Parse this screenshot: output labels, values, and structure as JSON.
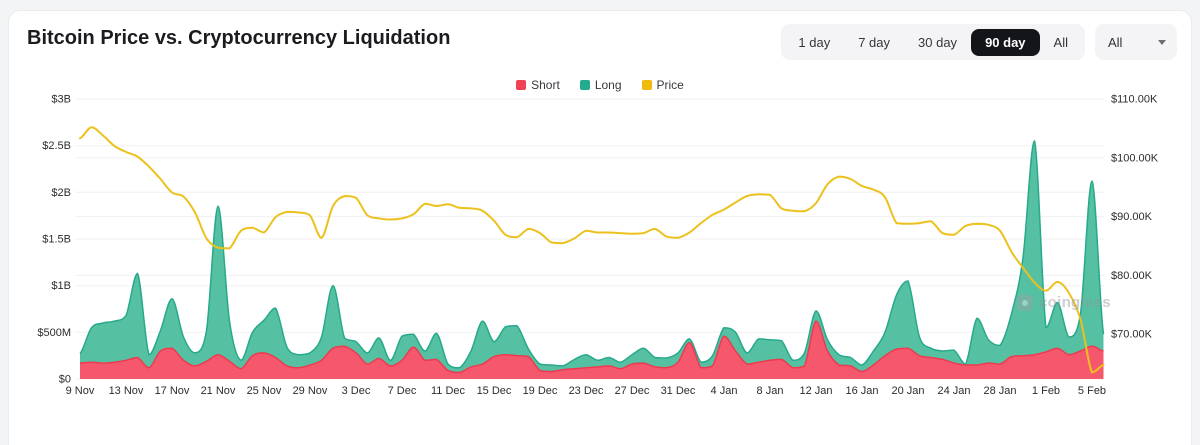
{
  "header": {
    "title": "Bitcoin Price vs. Cryptocurrency Liquidation",
    "range_buttons": [
      {
        "label": "1 day",
        "active": false
      },
      {
        "label": "7 day",
        "active": false
      },
      {
        "label": "30 day",
        "active": false
      },
      {
        "label": "90 day",
        "active": true
      },
      {
        "label": "All",
        "active": false
      }
    ],
    "dropdown": {
      "value": "All",
      "icon": "chevron-down-icon"
    }
  },
  "legend": [
    {
      "label": "Short",
      "color": "#ef4254"
    },
    {
      "label": "Long",
      "color": "#22ac8d"
    },
    {
      "label": "Price",
      "color": "#f0ba0c"
    }
  ],
  "watermark": "coinglass",
  "chart_data": {
    "type": "area",
    "title": "Bitcoin Price vs. Cryptocurrency Liquidation",
    "x_tick_labels": [
      "9 Nov",
      "13 Nov",
      "17 Nov",
      "21 Nov",
      "25 Nov",
      "29 Nov",
      "3 Dec",
      "7 Dec",
      "11 Dec",
      "15 Dec",
      "19 Dec",
      "23 Dec",
      "27 Dec",
      "31 Dec",
      "4 Jan",
      "8 Jan",
      "12 Jan",
      "16 Jan",
      "20 Jan",
      "24 Jan",
      "28 Jan",
      "1 Feb",
      "5 Feb"
    ],
    "x_tick_every_n_points": 4,
    "left_axis": {
      "ticks": [
        "$0",
        "$500M",
        "$1B",
        "$1.5B",
        "$2B",
        "$2.5B",
        "$3B"
      ],
      "unit": "USD liquidations",
      "min": 0,
      "max": 3000
    },
    "right_axis": {
      "ticks": [
        "$70.00K",
        "$80.00K",
        "$90.00K",
        "$100.00K",
        "$110.00K"
      ],
      "unit": "BTC price USD",
      "top": 110
    },
    "grid": true,
    "legend_position": "top-center",
    "series": [
      {
        "name": "Long",
        "type": "area",
        "unit": "$M",
        "fill": "#55c1a2",
        "stroke": "#27a98b",
        "values": [
          270,
          550,
          600,
          620,
          680,
          1130,
          260,
          520,
          860,
          450,
          280,
          520,
          1850,
          620,
          200,
          500,
          630,
          760,
          340,
          260,
          280,
          450,
          1000,
          440,
          400,
          280,
          440,
          200,
          460,
          480,
          300,
          490,
          160,
          120,
          300,
          620,
          400,
          560,
          570,
          320,
          160,
          150,
          140,
          210,
          260,
          200,
          230,
          180,
          260,
          330,
          230,
          225,
          280,
          430,
          180,
          250,
          550,
          500,
          280,
          430,
          420,
          410,
          200,
          280,
          730,
          420,
          260,
          230,
          150,
          300,
          500,
          900,
          1050,
          450,
          330,
          300,
          310,
          160,
          650,
          420,
          360,
          700,
          1300,
          2550,
          550,
          820,
          450,
          700,
          2120,
          480
        ]
      },
      {
        "name": "Short",
        "type": "area",
        "unit": "$M",
        "fill": "#f5586d",
        "stroke": "#ee3a50",
        "values": [
          170,
          180,
          170,
          180,
          200,
          230,
          120,
          300,
          330,
          200,
          140,
          190,
          260,
          190,
          110,
          250,
          280,
          230,
          140,
          120,
          150,
          200,
          330,
          350,
          280,
          160,
          220,
          140,
          200,
          340,
          200,
          210,
          90,
          70,
          130,
          160,
          240,
          260,
          250,
          240,
          90,
          80,
          100,
          110,
          120,
          130,
          140,
          110,
          160,
          170,
          130,
          120,
          180,
          390,
          120,
          140,
          460,
          300,
          160,
          180,
          200,
          210,
          120,
          140,
          620,
          300,
          150,
          140,
          80,
          150,
          250,
          320,
          330,
          250,
          230,
          210,
          170,
          150,
          150,
          170,
          160,
          240,
          250,
          260,
          290,
          330,
          260,
          300,
          350,
          300
        ]
      },
      {
        "name": "Price",
        "type": "line",
        "unit": "$K",
        "stroke": "#edc11d",
        "values": [
          103.3,
          105.2,
          103.8,
          102.0,
          101.0,
          100.2,
          98.5,
          96.4,
          94.1,
          93.4,
          90.7,
          86.3,
          84.7,
          84.6,
          87.6,
          88.1,
          87.3,
          89.9,
          90.8,
          90.7,
          90.2,
          86.4,
          91.8,
          93.5,
          93.2,
          90.2,
          89.7,
          89.5,
          89.7,
          90.4,
          92.2,
          91.8,
          92.1,
          91.5,
          91.4,
          91.0,
          89.3,
          86.9,
          86.5,
          87.9,
          87.2,
          85.6,
          85.5,
          86.3,
          87.6,
          87.3,
          87.3,
          87.2,
          87.1,
          87.2,
          87.9,
          86.6,
          86.4,
          87.3,
          88.9,
          90.3,
          91.2,
          92.4,
          93.5,
          93.8,
          93.7,
          91.4,
          91.0,
          90.9,
          92.3,
          95.5,
          96.8,
          96.4,
          95.2,
          94.6,
          93.3,
          88.9,
          88.8,
          88.9,
          89.2,
          87.2,
          86.9,
          88.4,
          88.8,
          88.6,
          87.6,
          84.0,
          81.3,
          78.8,
          77.4,
          78.9,
          77.0,
          72.5,
          63.5,
          64.8
        ]
      }
    ]
  },
  "colors": {
    "grid": "#f0f0f2",
    "axis_text": "#2b2c2e",
    "card_bg": "#ffffff",
    "page_bg": "#f3f4f6"
  }
}
